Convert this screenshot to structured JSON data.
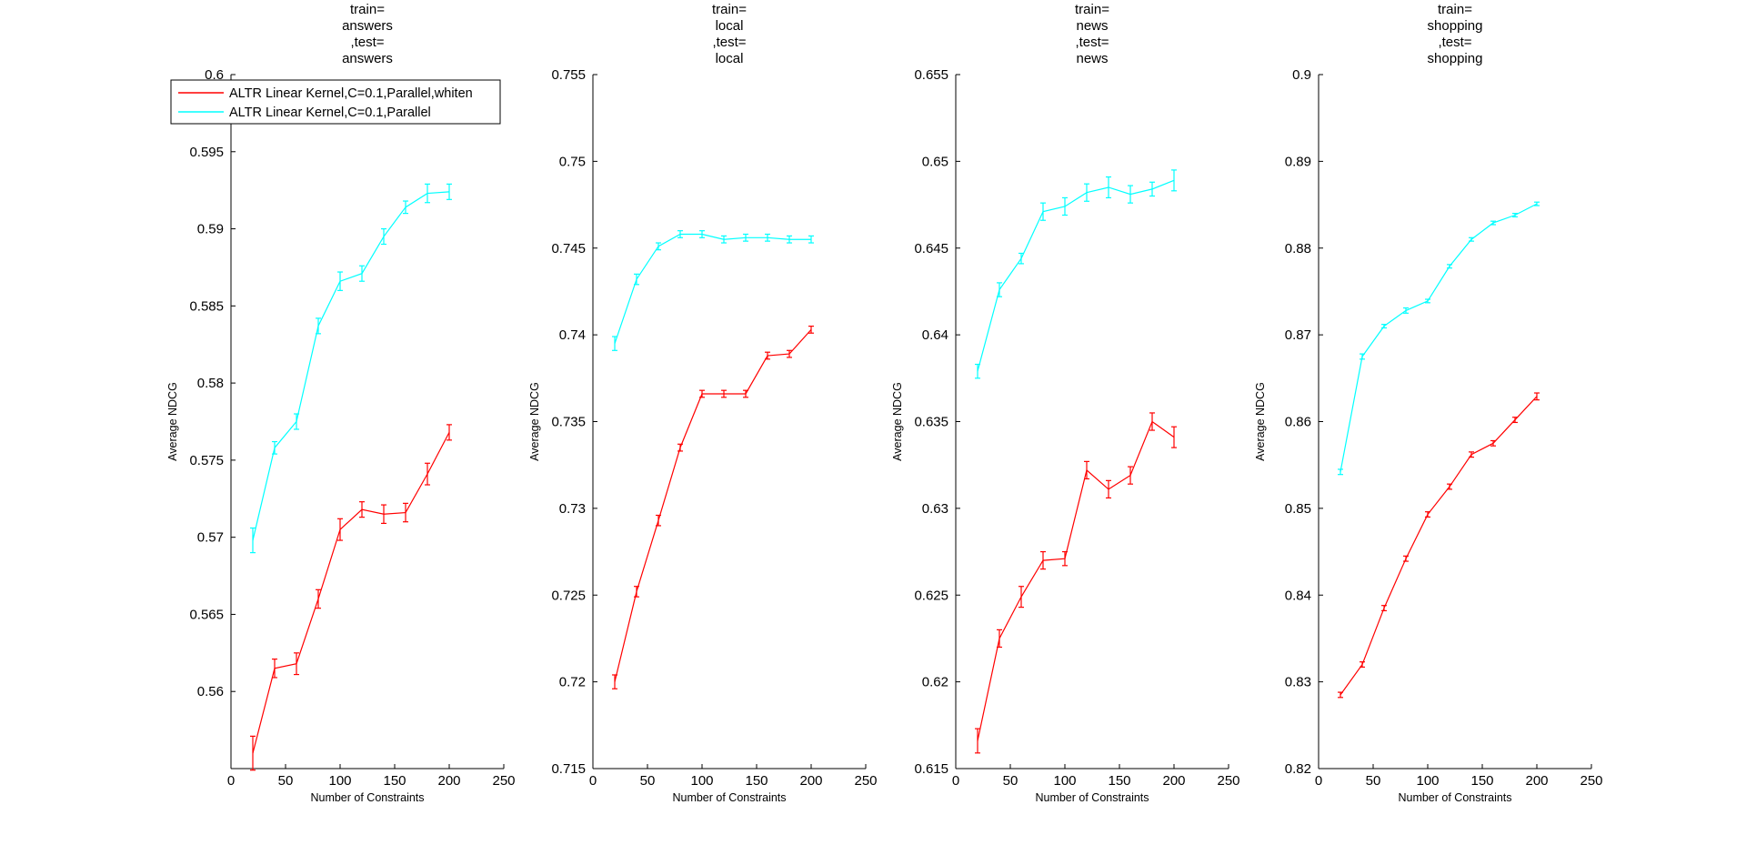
{
  "chart_data": [
    {
      "type": "line",
      "title_lines": [
        "train=",
        "answers",
        ",test=",
        "answers"
      ],
      "xlabel": "Number of Constraints",
      "ylabel": "Average NDCG",
      "xlim": [
        0,
        250
      ],
      "ylim": [
        0.555,
        0.6
      ],
      "x_ticks": [
        0,
        50,
        100,
        150,
        200,
        250
      ],
      "y_ticks": [
        0.56,
        0.565,
        0.57,
        0.575,
        0.58,
        0.585,
        0.59,
        0.595,
        0.6
      ],
      "y_tick_labels": [
        "0.56",
        "0.565",
        "0.57",
        "0.575",
        "0.58",
        "0.585",
        "0.59",
        "0.595",
        "0.6"
      ],
      "grid": false,
      "legend": {
        "position": "top-left",
        "entries": [
          {
            "label": "ALTR Linear Kernel,C=0.1,Parallel,whiten",
            "color": "#ff0000"
          },
          {
            "label": "ALTR Linear Kernel,C=0.1,Parallel",
            "color": "#00ffff"
          }
        ]
      },
      "x": [
        20,
        40,
        60,
        80,
        100,
        120,
        140,
        160,
        180,
        200
      ],
      "series": [
        {
          "color": "#ff0000",
          "values": [
            0.556,
            0.5615,
            0.5618,
            0.566,
            0.5705,
            0.5718,
            0.5715,
            0.5716,
            0.5741,
            0.5768
          ],
          "errors": [
            0.0011,
            0.0006,
            0.0007,
            0.0006,
            0.0007,
            0.0005,
            0.0006,
            0.0006,
            0.0007,
            0.0005
          ]
        },
        {
          "color": "#00ffff",
          "values": [
            0.5698,
            0.5758,
            0.5775,
            0.5837,
            0.5866,
            0.5871,
            0.5895,
            0.5914,
            0.5923,
            0.5924
          ],
          "errors": [
            0.0008,
            0.0004,
            0.0005,
            0.0005,
            0.0006,
            0.0005,
            0.0005,
            0.0004,
            0.0006,
            0.0005
          ]
        }
      ]
    },
    {
      "type": "line",
      "title_lines": [
        "train=",
        "local",
        ",test=",
        "local"
      ],
      "xlabel": "Number of Constraints",
      "ylabel": "Average NDCG",
      "xlim": [
        0,
        250
      ],
      "ylim": [
        0.715,
        0.755
      ],
      "x_ticks": [
        0,
        50,
        100,
        150,
        200,
        250
      ],
      "y_ticks": [
        0.715,
        0.72,
        0.725,
        0.73,
        0.735,
        0.74,
        0.745,
        0.75,
        0.755
      ],
      "y_tick_labels": [
        "0.715",
        "0.72",
        "0.725",
        "0.73",
        "0.735",
        "0.74",
        "0.745",
        "0.75",
        "0.755"
      ],
      "grid": false,
      "x": [
        20,
        40,
        60,
        80,
        100,
        120,
        140,
        160,
        180,
        200
      ],
      "series": [
        {
          "color": "#ff0000",
          "values": [
            0.72,
            0.7252,
            0.7293,
            0.7335,
            0.7366,
            0.7366,
            0.7366,
            0.7388,
            0.7389,
            0.7403
          ],
          "errors": [
            0.0004,
            0.0003,
            0.0003,
            0.0002,
            0.0002,
            0.0002,
            0.0002,
            0.0002,
            0.0002,
            0.0002
          ]
        },
        {
          "color": "#00ffff",
          "values": [
            0.7395,
            0.7432,
            0.7451,
            0.7458,
            0.7458,
            0.7455,
            0.7456,
            0.7456,
            0.7455,
            0.7455
          ],
          "errors": [
            0.0004,
            0.0003,
            0.0002,
            0.0002,
            0.0002,
            0.0002,
            0.0002,
            0.0002,
            0.0002,
            0.0002
          ]
        }
      ]
    },
    {
      "type": "line",
      "title_lines": [
        "train=",
        "news",
        ",test=",
        "news"
      ],
      "xlabel": "Number of Constraints",
      "ylabel": "Average NDCG",
      "xlim": [
        0,
        250
      ],
      "ylim": [
        0.615,
        0.655
      ],
      "x_ticks": [
        0,
        50,
        100,
        150,
        200,
        250
      ],
      "y_ticks": [
        0.615,
        0.62,
        0.625,
        0.63,
        0.635,
        0.64,
        0.645,
        0.65,
        0.655
      ],
      "y_tick_labels": [
        "0.615",
        "0.62",
        "0.625",
        "0.63",
        "0.635",
        "0.64",
        "0.645",
        "0.65",
        "0.655"
      ],
      "grid": false,
      "x": [
        20,
        40,
        60,
        80,
        100,
        120,
        140,
        160,
        180,
        200
      ],
      "series": [
        {
          "color": "#ff0000",
          "values": [
            0.6166,
            0.6225,
            0.6249,
            0.627,
            0.6271,
            0.6322,
            0.6311,
            0.6319,
            0.635,
            0.6341
          ],
          "errors": [
            0.0007,
            0.0005,
            0.0006,
            0.0005,
            0.0004,
            0.0005,
            0.0005,
            0.0005,
            0.0005,
            0.0006
          ]
        },
        {
          "color": "#00ffff",
          "values": [
            0.6379,
            0.6426,
            0.6444,
            0.6471,
            0.6474,
            0.6482,
            0.6485,
            0.6481,
            0.6484,
            0.6489
          ],
          "errors": [
            0.0004,
            0.0004,
            0.0003,
            0.0005,
            0.0005,
            0.0005,
            0.0006,
            0.0005,
            0.0004,
            0.0006
          ]
        }
      ]
    },
    {
      "type": "line",
      "title_lines": [
        "train=",
        "shopping",
        ",test=",
        "shopping"
      ],
      "xlabel": "Number of Constraints",
      "ylabel": "Average NDCG",
      "xlim": [
        0,
        250
      ],
      "ylim": [
        0.82,
        0.9
      ],
      "x_ticks": [
        0,
        50,
        100,
        150,
        200,
        250
      ],
      "y_ticks": [
        0.82,
        0.83,
        0.84,
        0.85,
        0.86,
        0.87,
        0.88,
        0.89,
        0.9
      ],
      "y_tick_labels": [
        "0.82",
        "0.83",
        "0.84",
        "0.85",
        "0.86",
        "0.87",
        "0.88",
        "0.89",
        "0.9"
      ],
      "grid": false,
      "x": [
        20,
        40,
        60,
        80,
        100,
        120,
        140,
        160,
        180,
        200
      ],
      "series": [
        {
          "color": "#ff0000",
          "values": [
            0.8285,
            0.832,
            0.8385,
            0.8442,
            0.8493,
            0.8525,
            0.8562,
            0.8575,
            0.8602,
            0.8629
          ],
          "errors": [
            0.0003,
            0.0003,
            0.0003,
            0.0003,
            0.0003,
            0.0003,
            0.0003,
            0.0003,
            0.0003,
            0.0004
          ]
        },
        {
          "color": "#00ffff",
          "values": [
            0.8542,
            0.8675,
            0.871,
            0.8728,
            0.8739,
            0.8779,
            0.881,
            0.8829,
            0.8838,
            0.8851
          ],
          "errors": [
            0.0003,
            0.0003,
            0.0002,
            0.0003,
            0.0002,
            0.0002,
            0.0002,
            0.0002,
            0.0002,
            0.0002
          ]
        }
      ]
    }
  ]
}
